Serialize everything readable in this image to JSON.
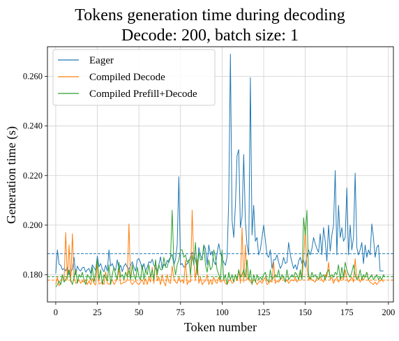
{
  "chart_data": {
    "type": "line",
    "title": "Tokens generation time during decoding",
    "subtitle": "Decode: 200, batch size: 1",
    "xlabel": "Token number",
    "ylabel": "Generation time (s)",
    "xlim": [
      -5,
      203
    ],
    "ylim": [
      0.169,
      0.272
    ],
    "xticks": [
      0,
      25,
      50,
      75,
      100,
      125,
      150,
      175,
      200
    ],
    "yticks": [
      0.18,
      0.2,
      0.22,
      0.24,
      0.26
    ],
    "ytick_labels": [
      "0.180",
      "0.200",
      "0.220",
      "0.240",
      "0.260"
    ],
    "grid": true,
    "legend_position": "top-left",
    "series": [
      {
        "name": "Eager",
        "color": "#1f77b4",
        "mean": 0.1885,
        "values": [
          0.1805,
          0.19,
          0.1842,
          0.1838,
          0.182,
          0.1825,
          0.1815,
          0.183,
          0.18,
          0.181,
          0.1822,
          0.187,
          0.18,
          0.1835,
          0.182,
          0.1815,
          0.1828,
          0.183,
          0.181,
          0.182,
          0.1825,
          0.1805,
          0.184,
          0.1828,
          0.1818,
          0.1875,
          0.1832,
          0.1845,
          0.1822,
          0.1812,
          0.1838,
          0.1815,
          0.19,
          0.1835,
          0.1845,
          0.1825,
          0.1818,
          0.186,
          0.1822,
          0.1838,
          0.1812,
          0.1835,
          0.1845,
          0.183,
          0.1822,
          0.1838,
          0.1852,
          0.183,
          0.1815,
          0.186,
          0.1865,
          0.1848,
          0.1822,
          0.1845,
          0.1815,
          0.183,
          0.1852,
          0.1848,
          0.1862,
          0.1838,
          0.1825,
          0.1815,
          0.184,
          0.1872,
          0.1822,
          0.1842,
          0.1835,
          0.1858,
          0.185,
          0.187,
          0.1882,
          0.184,
          0.186,
          0.192,
          0.2195,
          0.184,
          0.1845,
          0.183,
          0.1835,
          0.1845,
          0.185,
          0.1872,
          0.189,
          0.188,
          0.1862,
          0.1825,
          0.191,
          0.188,
          0.1862,
          0.192,
          0.1905,
          0.184,
          0.192,
          0.188,
          0.1895,
          0.1855,
          0.184,
          0.1888,
          0.1925,
          0.189,
          0.1865,
          0.185,
          0.1838,
          0.1872,
          0.21,
          0.269,
          0.202,
          0.195,
          0.208,
          0.228,
          0.2305,
          0.199,
          0.2035,
          0.2285,
          0.2015,
          0.192,
          0.188,
          0.2595,
          0.196,
          0.208,
          0.1935,
          0.195,
          0.188,
          0.19,
          0.195,
          0.2,
          0.194,
          0.188,
          0.187,
          0.19,
          0.1825,
          0.186,
          0.186,
          0.188,
          0.185,
          0.1825,
          0.184,
          0.187,
          0.1845,
          0.185,
          0.193,
          0.188,
          0.185,
          0.1825,
          0.184,
          0.182,
          0.1855,
          0.187,
          0.1845,
          0.186,
          0.183,
          0.1875,
          0.19,
          0.188,
          0.1905,
          0.195,
          0.1925,
          0.1905,
          0.189,
          0.1965,
          0.188,
          0.199,
          0.1935,
          0.1855,
          0.2,
          0.1895,
          0.196,
          0.2,
          0.222,
          0.188,
          0.208,
          0.195,
          0.199,
          0.1935,
          0.195,
          0.215,
          0.188,
          0.2,
          0.19,
          0.195,
          0.221,
          0.191,
          0.188,
          0.19,
          0.193,
          0.1845,
          0.192,
          0.187,
          0.19,
          0.188,
          0.2005,
          0.195,
          0.187,
          0.191,
          0.192,
          0.1815,
          0.1815,
          0.1815
        ]
      },
      {
        "name": "Compiled Decode",
        "color": "#ff7f0e",
        "mean": 0.1778,
        "values": [
          0.176,
          0.179,
          0.1755,
          0.1765,
          0.18,
          0.1775,
          0.197,
          0.178,
          0.192,
          0.177,
          0.1965,
          0.179,
          0.1765,
          0.177,
          0.178,
          0.1765,
          0.1775,
          0.177,
          0.178,
          0.176,
          0.1775,
          0.176,
          0.1785,
          0.1765,
          0.1758,
          0.185,
          0.1762,
          0.1765,
          0.1772,
          0.176,
          0.1812,
          0.1765,
          0.176,
          0.177,
          0.178,
          0.176,
          0.177,
          0.179,
          0.182,
          0.1762,
          0.1765,
          0.177,
          0.177,
          0.178,
          0.2005,
          0.177,
          0.176,
          0.177,
          0.1775,
          0.1765,
          0.176,
          0.177,
          0.178,
          0.176,
          0.1785,
          0.176,
          0.179,
          0.177,
          0.183,
          0.1765,
          0.186,
          0.1775,
          0.179,
          0.176,
          0.18,
          0.177,
          0.1755,
          0.18,
          0.177,
          0.1765,
          0.1835,
          0.1785,
          0.177,
          0.1765,
          0.179,
          0.177,
          0.178,
          0.1765,
          0.186,
          0.176,
          0.1775,
          0.177,
          0.206,
          0.185,
          0.178,
          0.186,
          0.1765,
          0.179,
          0.176,
          0.177,
          0.1775,
          0.18,
          0.176,
          0.178,
          0.176,
          0.179,
          0.177,
          0.1765,
          0.179,
          0.177,
          0.1775,
          0.178,
          0.1765,
          0.176,
          0.1775,
          0.178,
          0.1765,
          0.177,
          0.18,
          0.1775,
          0.182,
          0.1765,
          0.199,
          0.177,
          0.192,
          0.178,
          0.179,
          0.177,
          0.1765,
          0.178,
          0.1775,
          0.176,
          0.177,
          0.1775,
          0.1765,
          0.178,
          0.179,
          0.176,
          0.1765,
          0.1775,
          0.177,
          0.185,
          0.1765,
          0.1775,
          0.177,
          0.178,
          0.1785,
          0.179,
          0.177,
          0.178,
          0.1765,
          0.1775,
          0.178,
          0.1775,
          0.179,
          0.177,
          0.178,
          0.181,
          0.178,
          0.186,
          0.199,
          0.183,
          0.178,
          0.179,
          0.178,
          0.1775,
          0.177,
          0.179,
          0.178,
          0.179,
          0.178,
          0.177,
          0.18,
          0.179,
          0.185,
          0.178,
          0.179,
          0.1765,
          0.178,
          0.179,
          0.177,
          0.178,
          0.179,
          0.178,
          0.182,
          0.1785,
          0.177,
          0.178,
          0.179,
          0.177,
          0.1865,
          0.178,
          0.179,
          0.177,
          0.1785,
          0.178,
          0.179,
          0.181,
          0.178,
          0.177,
          0.1765,
          0.176,
          0.177,
          0.176,
          0.177,
          0.1775,
          0.178,
          0.177
        ]
      },
      {
        "name": "Compiled Prefill+Decode",
        "color": "#2ca02c",
        "mean": 0.1792,
        "values": [
          0.175,
          0.176,
          0.1775,
          0.176,
          0.18,
          0.177,
          0.178,
          0.1795,
          0.182,
          0.178,
          0.176,
          0.179,
          0.182,
          0.1765,
          0.18,
          0.179,
          0.181,
          0.178,
          0.176,
          0.18,
          0.179,
          0.178,
          0.183,
          0.177,
          0.181,
          0.186,
          0.178,
          0.182,
          0.176,
          0.18,
          0.179,
          0.1775,
          0.184,
          0.176,
          0.18,
          0.183,
          0.18,
          0.178,
          0.185,
          0.179,
          0.18,
          0.178,
          0.181,
          0.179,
          0.182,
          0.178,
          0.184,
          0.18,
          0.178,
          0.183,
          0.179,
          0.178,
          0.184,
          0.178,
          0.182,
          0.18,
          0.184,
          0.179,
          0.182,
          0.178,
          0.186,
          0.18,
          0.184,
          0.182,
          0.182,
          0.187,
          0.183,
          0.183,
          0.186,
          0.187,
          0.206,
          0.184,
          0.18,
          0.184,
          0.186,
          0.19,
          0.19,
          0.187,
          0.188,
          0.185,
          0.186,
          0.18,
          0.188,
          0.184,
          0.193,
          0.18,
          0.189,
          0.186,
          0.186,
          0.192,
          0.184,
          0.181,
          0.186,
          0.182,
          0.183,
          0.19,
          0.187,
          0.182,
          0.18,
          0.178,
          0.19,
          0.178,
          0.18,
          0.176,
          0.181,
          0.178,
          0.18,
          0.177,
          0.18,
          0.178,
          0.182,
          0.179,
          0.18,
          0.182,
          0.179,
          0.186,
          0.178,
          0.182,
          0.176,
          0.18,
          0.177,
          0.18,
          0.178,
          0.179,
          0.178,
          0.18,
          0.181,
          0.178,
          0.177,
          0.182,
          0.178,
          0.179,
          0.18,
          0.179,
          0.182,
          0.178,
          0.18,
          0.179,
          0.177,
          0.182,
          0.178,
          0.179,
          0.18,
          0.179,
          0.181,
          0.18,
          0.178,
          0.182,
          0.178,
          0.203,
          0.196,
          0.206,
          0.18,
          0.178,
          0.181,
          0.179,
          0.18,
          0.179,
          0.178,
          0.181,
          0.179,
          0.18,
          0.178,
          0.181,
          0.182,
          0.179,
          0.18,
          0.179,
          0.181,
          0.18,
          0.184,
          0.178,
          0.183,
          0.179,
          0.185,
          0.182,
          0.18,
          0.179,
          0.181,
          0.184,
          0.18,
          0.178,
          0.179,
          0.182,
          0.178,
          0.18,
          0.179,
          0.181,
          0.178,
          0.179,
          0.18,
          0.178,
          0.179,
          0.18,
          0.178,
          0.179,
          0.178,
          0.18,
          0.179
        ]
      }
    ]
  }
}
